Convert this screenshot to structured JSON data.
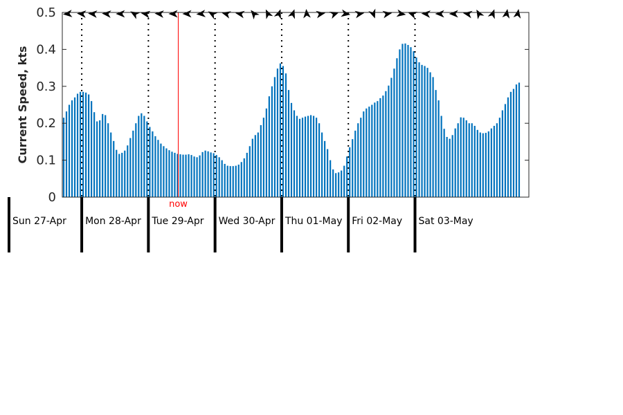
{
  "colors": {
    "bar": "#0072bd",
    "now": "#ff0000",
    "axis": "#262626",
    "arrow": "#000000"
  },
  "chart_data": {
    "type": "bar",
    "ylabel": "Current Speed, kts",
    "ylim": [
      0,
      0.5
    ],
    "yticks": [
      "0",
      "0.1",
      "0.2",
      "0.3",
      "0.4",
      "0.5"
    ],
    "ytick_values": [
      0,
      0.1,
      0.2,
      0.3,
      0.4,
      0.5
    ],
    "x_unit": "hours from Sun 27-Apr 17:00",
    "xlim": [
      0,
      168
    ],
    "days": [
      {
        "label": "Sun 27-Apr",
        "start_hour": -17
      },
      {
        "label": "Mon 28-Apr",
        "start_hour": 7
      },
      {
        "label": "Tue 29-Apr",
        "start_hour": 31
      },
      {
        "label": "Wed 30-Apr",
        "start_hour": 55
      },
      {
        "label": "Thu 01-May",
        "start_hour": 79
      },
      {
        "label": "Fri 02-May",
        "start_hour": 103
      },
      {
        "label": "Sat 03-May",
        "start_hour": 127
      }
    ],
    "now": {
      "label": "now",
      "hour": 41.75
    },
    "bar_hours": 1,
    "values": [
      0.215,
      0.232,
      0.25,
      0.262,
      0.27,
      0.28,
      0.285,
      0.285,
      0.283,
      0.278,
      0.26,
      0.23,
      0.205,
      0.208,
      0.225,
      0.222,
      0.2,
      0.175,
      0.152,
      0.128,
      0.117,
      0.12,
      0.126,
      0.14,
      0.16,
      0.18,
      0.2,
      0.22,
      0.227,
      0.22,
      0.205,
      0.19,
      0.178,
      0.165,
      0.155,
      0.145,
      0.138,
      0.132,
      0.127,
      0.123,
      0.12,
      0.117,
      0.116,
      0.115,
      0.115,
      0.116,
      0.114,
      0.11,
      0.108,
      0.113,
      0.122,
      0.126,
      0.124,
      0.121,
      0.119,
      0.114,
      0.108,
      0.1,
      0.09,
      0.085,
      0.084,
      0.084,
      0.085,
      0.088,
      0.095,
      0.105,
      0.12,
      0.138,
      0.158,
      0.168,
      0.175,
      0.195,
      0.215,
      0.24,
      0.273,
      0.3,
      0.325,
      0.348,
      0.362,
      0.355,
      0.335,
      0.29,
      0.255,
      0.235,
      0.22,
      0.212,
      0.215,
      0.218,
      0.22,
      0.222,
      0.22,
      0.215,
      0.2,
      0.175,
      0.152,
      0.13,
      0.1,
      0.075,
      0.065,
      0.067,
      0.072,
      0.085,
      0.11,
      0.135,
      0.157,
      0.18,
      0.2,
      0.215,
      0.232,
      0.24,
      0.245,
      0.25,
      0.256,
      0.26,
      0.268,
      0.275,
      0.287,
      0.302,
      0.323,
      0.348,
      0.376,
      0.4,
      0.415,
      0.416,
      0.412,
      0.406,
      0.395,
      0.378,
      0.365,
      0.358,
      0.355,
      0.35,
      0.338,
      0.325,
      0.29,
      0.262,
      0.22,
      0.185,
      0.163,
      0.158,
      0.168,
      0.186,
      0.2,
      0.216,
      0.215,
      0.208,
      0.2,
      0.2,
      0.193,
      0.182,
      0.175,
      0.173,
      0.174,
      0.178,
      0.186,
      0.193,
      0.2,
      0.215,
      0.235,
      0.252,
      0.27,
      0.285,
      0.293,
      0.305,
      0.31
    ],
    "arrows": [
      {
        "hour": 2,
        "direction_deg": 265
      },
      {
        "hour": 7,
        "direction_deg": 275
      },
      {
        "hour": 11,
        "direction_deg": 275
      },
      {
        "hour": 16,
        "direction_deg": 275
      },
      {
        "hour": 21,
        "direction_deg": 270
      },
      {
        "hour": 26,
        "direction_deg": 300
      },
      {
        "hour": 30,
        "direction_deg": 280
      },
      {
        "hour": 35,
        "direction_deg": 275
      },
      {
        "hour": 40,
        "direction_deg": 270
      },
      {
        "hour": 45,
        "direction_deg": 270
      },
      {
        "hour": 50,
        "direction_deg": 265
      },
      {
        "hour": 54,
        "direction_deg": 300
      },
      {
        "hour": 59,
        "direction_deg": 285
      },
      {
        "hour": 64,
        "direction_deg": 280
      },
      {
        "hour": 69,
        "direction_deg": 320
      },
      {
        "hour": 74,
        "direction_deg": 335
      },
      {
        "hour": 78,
        "direction_deg": 20
      },
      {
        "hour": 83,
        "direction_deg": 20
      },
      {
        "hour": 88,
        "direction_deg": 355
      },
      {
        "hour": 93,
        "direction_deg": 80
      },
      {
        "hour": 98,
        "direction_deg": 70
      },
      {
        "hour": 102,
        "direction_deg": 100
      },
      {
        "hour": 107,
        "direction_deg": 80
      },
      {
        "hour": 112,
        "direction_deg": 160
      },
      {
        "hour": 117,
        "direction_deg": 80
      },
      {
        "hour": 122,
        "direction_deg": 100
      },
      {
        "hour": 126,
        "direction_deg": 290
      },
      {
        "hour": 131,
        "direction_deg": 275
      },
      {
        "hour": 136,
        "direction_deg": 270
      },
      {
        "hour": 141,
        "direction_deg": 270
      },
      {
        "hour": 146,
        "direction_deg": 280
      },
      {
        "hour": 150,
        "direction_deg": 330
      },
      {
        "hour": 155,
        "direction_deg": 20
      },
      {
        "hour": 160,
        "direction_deg": 10
      },
      {
        "hour": 164,
        "direction_deg": 10
      }
    ],
    "grid": false,
    "legend": "none"
  }
}
